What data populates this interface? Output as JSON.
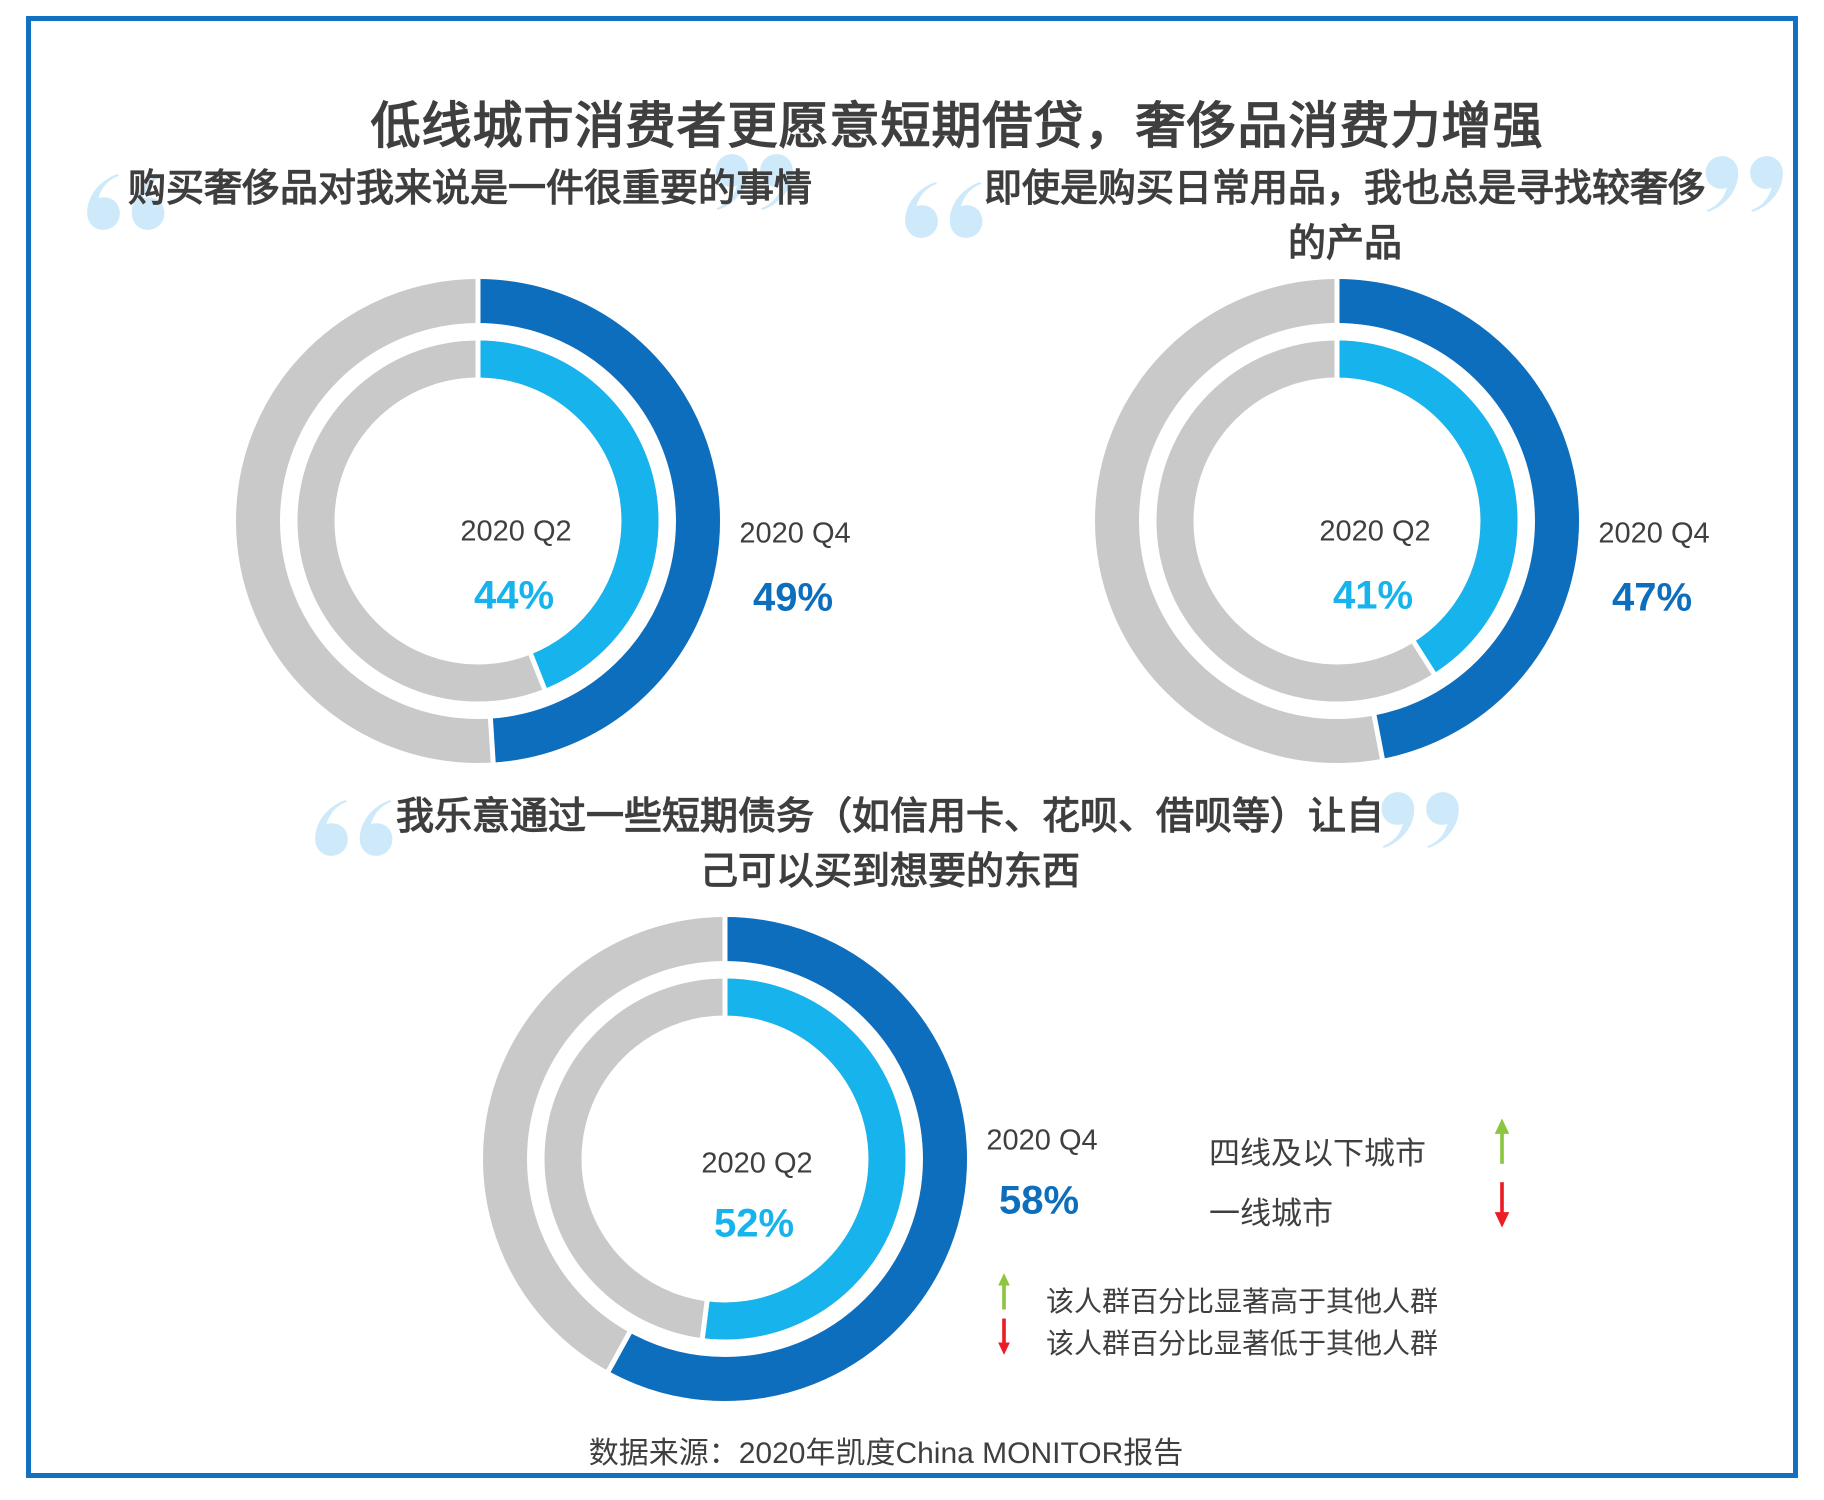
{
  "page": {
    "title": "低线城市消费者更愿意短期借贷，奢侈品消费力增强",
    "source": "数据来源：2020年凯度China MONITOR报告"
  },
  "colors": {
    "q4_blue": "#0E6EBE",
    "q2_blue": "#17B3EC",
    "ring_gray": "#C9C9C9",
    "quote_mark": "#CDE9FA",
    "text_dark": "#3F3F3F",
    "border_blue": "#1470C2",
    "green": "#8CC63F",
    "red": "#EC1B24"
  },
  "legend": {
    "items": [
      {
        "label": "四线及以下城市",
        "direction": "up"
      },
      {
        "label": "一线城市",
        "direction": "down"
      }
    ]
  },
  "notes": [
    {
      "direction": "up",
      "text": "该人群百分比显著高于其他人群"
    },
    {
      "direction": "down",
      "text": "该人群百分比显著低于其他人群"
    }
  ],
  "chart_data": [
    {
      "type": "pie",
      "variant": "concentric_donut",
      "title": "购买奢侈品对我来说是一件很重要的事情",
      "unit": "%",
      "rings": {
        "outer": "2020 Q4",
        "inner": "2020 Q2"
      },
      "series": [
        {
          "name": "2020 Q2",
          "ring": "inner",
          "value": 44,
          "color": "#17B3EC"
        },
        {
          "name": "2020 Q4",
          "ring": "outer",
          "value": 49,
          "color": "#0E6EBE"
        }
      ],
      "labels": {
        "q2_name": "2020 Q2",
        "q2_value": "44%",
        "q4_name": "2020 Q4",
        "q4_value": "49%"
      }
    },
    {
      "type": "pie",
      "variant": "concentric_donut",
      "title": "即使是购买日常用品，我也总是寻找较奢侈的产品",
      "unit": "%",
      "rings": {
        "outer": "2020 Q4",
        "inner": "2020 Q2"
      },
      "series": [
        {
          "name": "2020 Q2",
          "ring": "inner",
          "value": 41,
          "color": "#17B3EC"
        },
        {
          "name": "2020 Q4",
          "ring": "outer",
          "value": 47,
          "color": "#0E6EBE"
        }
      ],
      "labels": {
        "q2_name": "2020 Q2",
        "q2_value": "41%",
        "q4_name": "2020 Q4",
        "q4_value": "47%"
      }
    },
    {
      "type": "pie",
      "variant": "concentric_donut",
      "title": "我乐意通过一些短期债务（如信用卡、花呗、借呗等）让自己可以买到想要的东西",
      "unit": "%",
      "rings": {
        "outer": "2020 Q4",
        "inner": "2020 Q2"
      },
      "series": [
        {
          "name": "2020 Q2",
          "ring": "inner",
          "value": 52,
          "color": "#17B3EC"
        },
        {
          "name": "2020 Q4",
          "ring": "outer",
          "value": 58,
          "color": "#0E6EBE"
        }
      ],
      "labels": {
        "q2_name": "2020 Q2",
        "q2_value": "52%",
        "q4_name": "2020 Q4",
        "q4_value": "58%"
      }
    }
  ]
}
